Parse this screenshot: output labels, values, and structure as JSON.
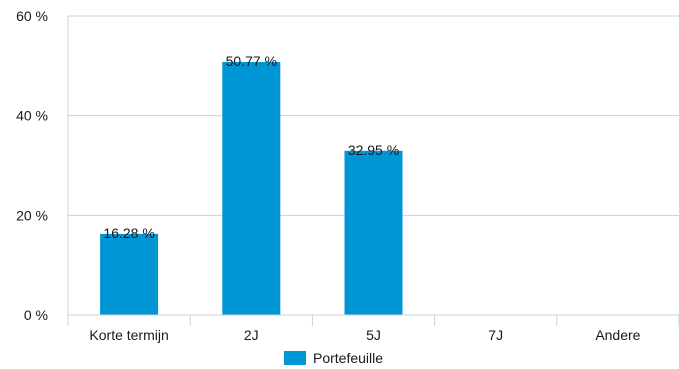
{
  "chart_data": {
    "type": "bar",
    "categories": [
      "Korte termijn",
      "2J",
      "5J",
      "7J",
      "Andere"
    ],
    "series": [
      {
        "name": "Portefeuille",
        "values": [
          16.28,
          50.77,
          32.95,
          null,
          null
        ],
        "color": "#0096d6"
      }
    ],
    "data_labels": [
      "16.28 %",
      "50.77 %",
      "32.95 %",
      "",
      ""
    ],
    "y_ticks": [
      0,
      20,
      40,
      60
    ],
    "y_tick_labels": [
      "0 %",
      "20 %",
      "40 %",
      "60 %"
    ],
    "ylim": [
      0,
      60
    ],
    "grid": true,
    "gridline_color": "#c5d3e3",
    "axis_color": "#c5d3e3",
    "legend": {
      "position": "bottom-center",
      "label": "Portefeuille"
    }
  }
}
